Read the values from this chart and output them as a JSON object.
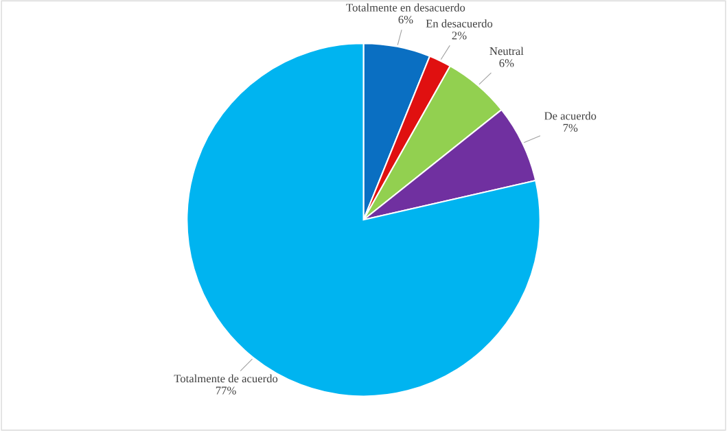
{
  "chart_data": {
    "type": "pie",
    "categories": [
      "Totalmente en desacuerdo",
      "En desacuerdo",
      "Neutral",
      "De acuerdo",
      "Totalmente de acuerdo"
    ],
    "values": [
      6,
      2,
      6,
      7,
      77
    ],
    "value_labels": [
      "6%",
      "2%",
      "6%",
      "7%",
      "77%"
    ],
    "colors": [
      "#0a6fc2",
      "#e01010",
      "#92d050",
      "#7030a0",
      "#00b4f0"
    ],
    "legend": false
  }
}
